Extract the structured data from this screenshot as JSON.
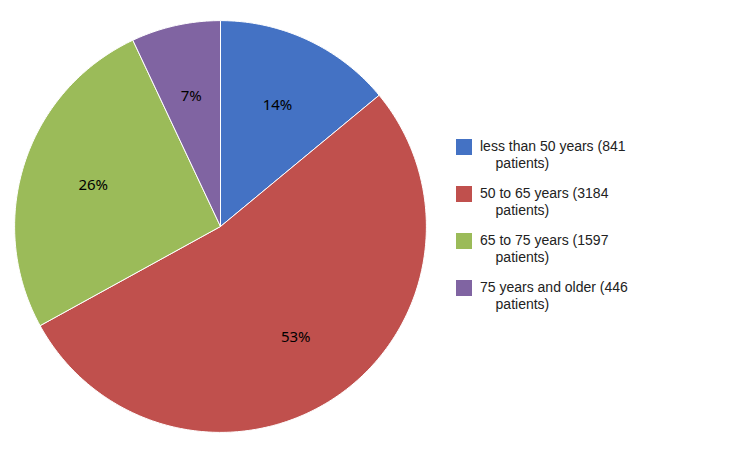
{
  "chart_data": {
    "type": "pie",
    "categories": [
      "less than 50 years (841\n    patients)",
      "50 to 65 years (3184\n    patients)",
      "65 to 75 years (1597\n    patients)",
      "75 years and older (446\n    patients)"
    ],
    "values": [
      14,
      53,
      26,
      7
    ],
    "value_labels": [
      "14%",
      "53%",
      "26%",
      "7%"
    ],
    "colors": [
      "#4472c4",
      "#c0504d",
      "#9bbb59",
      "#8064a2"
    ],
    "data_labels": true,
    "legend": "right"
  }
}
